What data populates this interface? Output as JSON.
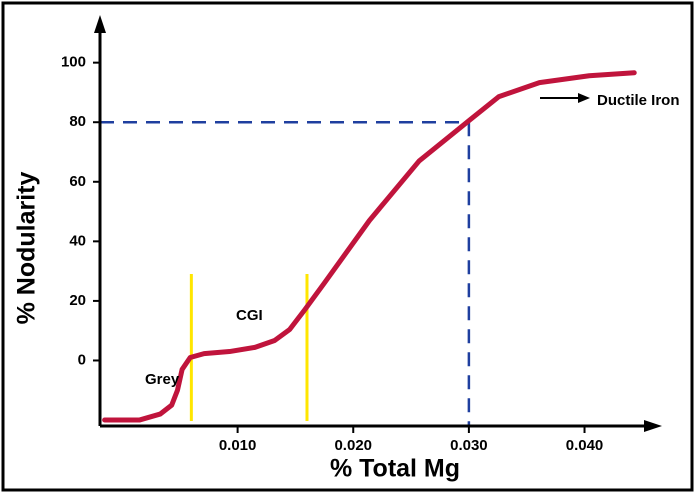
{
  "chart_data": {
    "type": "line",
    "x_label": "% Total Mg",
    "y_label": "% Nodularity",
    "x": [
      -0.0015,
      0.0015,
      0.0033,
      0.0043,
      0.0048,
      0.0052,
      0.0059,
      0.0071,
      0.0093,
      0.0115,
      0.0132,
      0.0145,
      0.0158,
      0.0175,
      0.0214,
      0.0257,
      0.03,
      0.0326,
      0.0361,
      0.0404,
      0.0443
    ],
    "values": [
      -20,
      -20,
      -18,
      -15,
      -10,
      -3,
      1,
      2.3,
      3,
      4.4,
      6.7,
      10.4,
      17,
      26,
      47,
      67,
      80.5,
      88.6,
      93.3,
      95.6,
      96.6
    ],
    "color": "#c0143c",
    "xlim": [
      -0.0019,
      0.0467
    ],
    "ylim": [
      -22,
      116
    ],
    "xticks": [
      {
        "value": 0.01,
        "label": "0.010"
      },
      {
        "value": 0.02,
        "label": "0.020"
      },
      {
        "value": 0.03,
        "label": "0.030"
      },
      {
        "value": 0.04,
        "label": "0.040"
      }
    ],
    "yticks": [
      0,
      20,
      40,
      60,
      80,
      100
    ],
    "vlines": [
      0.006,
      0.016
    ],
    "vline_color": "#ffe600",
    "reference_point": {
      "x": 0.03,
      "y": 80
    },
    "reference_color": "#1f3f9f",
    "annotations": [
      "Grey",
      "CGI",
      "Ductile Iron"
    ]
  }
}
